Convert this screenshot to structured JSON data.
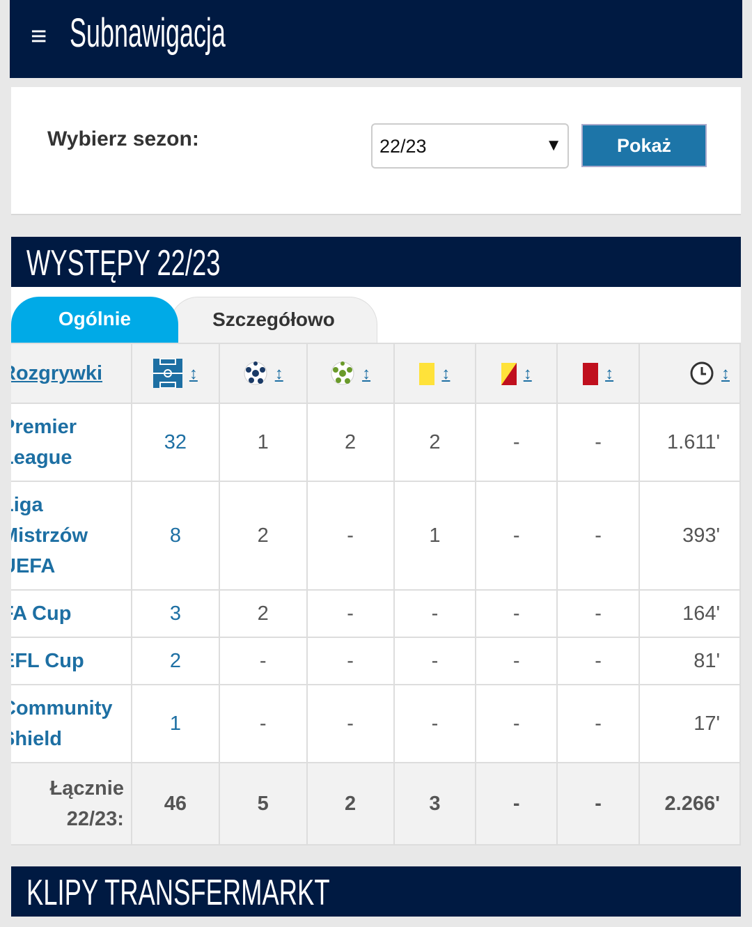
{
  "header": {
    "menu_icon": "hamburger-icon",
    "title": "Subnawigacja"
  },
  "season": {
    "label": "Wybierz sezon:",
    "selected": "22/23",
    "button": "Pokaż"
  },
  "appearances": {
    "title": "WYSTĘPY 22/23",
    "tabs": [
      {
        "label": "Ogólnie",
        "active": true
      },
      {
        "label": "Szczegółowo",
        "active": false
      }
    ],
    "columns": [
      "Rozgrywki",
      "pitch-icon",
      "goal-ball-icon",
      "assist-ball-icon",
      "yellow-card-icon",
      "yellow-red-card-icon",
      "red-card-icon",
      "clock-icon"
    ],
    "rows": [
      {
        "competition": [
          "Premier",
          "League"
        ],
        "values": [
          "32",
          "1",
          "2",
          "2",
          "-",
          "-",
          "1.611'"
        ]
      },
      {
        "competition": [
          "Liga",
          "Mistrzów",
          "UEFA"
        ],
        "values": [
          "8",
          "2",
          "-",
          "1",
          "-",
          "-",
          "393'"
        ]
      },
      {
        "competition": [
          "FA Cup"
        ],
        "values": [
          "3",
          "2",
          "-",
          "-",
          "-",
          "-",
          "164'"
        ]
      },
      {
        "competition": [
          "EFL Cup"
        ],
        "values": [
          "2",
          "-",
          "-",
          "-",
          "-",
          "-",
          "81'"
        ]
      },
      {
        "competition": [
          "Community",
          "Shield"
        ],
        "values": [
          "1",
          "-",
          "-",
          "-",
          "-",
          "-",
          "17'"
        ]
      }
    ],
    "total": {
      "label": [
        "Łącznie",
        "22/23:"
      ],
      "values": [
        "46",
        "5",
        "2",
        "3",
        "-",
        "-",
        "2.266'"
      ]
    }
  },
  "clips": {
    "title": "KLIPY TRANSFERMARKT"
  },
  "colors": {
    "navy": "#001a42",
    "accent": "#00aae7",
    "link": "#1d6fa3",
    "button": "#1d75a8"
  }
}
